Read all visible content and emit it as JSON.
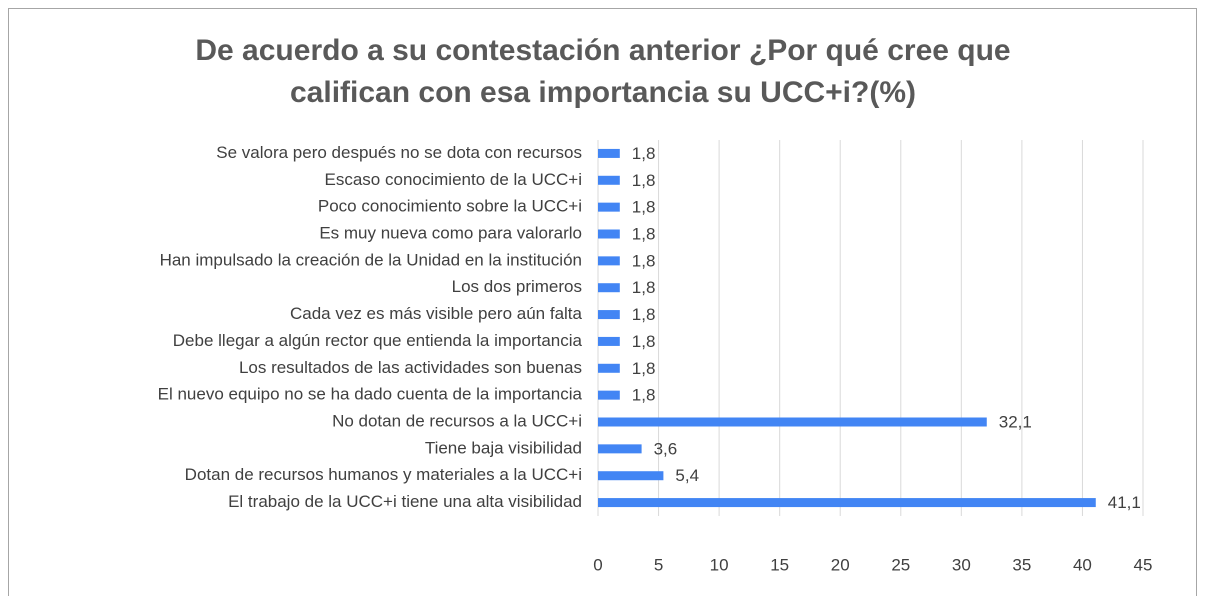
{
  "chart_data": {
    "type": "bar",
    "orientation": "horizontal",
    "title": "De acuerdo a su contestación anterior ¿Por qué cree que califican con esa importancia su UCC+i?(%)",
    "categories": [
      "Se valora pero después no se dota con recursos",
      "Escaso conocimiento de la UCC+i",
      "Poco conocimiento sobre la UCC+i",
      "Es muy nueva como para valorarlo",
      "Han impulsado la creación de la Unidad en la institución",
      "Los dos primeros",
      "Cada vez es más visible pero aún falta",
      "Debe llegar a algún rector que entienda la importancia",
      "Los resultados de las actividades son buenas",
      "El nuevo equipo no se ha dado cuenta de la importancia",
      "No dotan de recursos a la UCC+i",
      "Tiene baja visibilidad",
      "Dotan de recursos humanos y materiales a la UCC+i",
      "El trabajo de la UCC+i tiene una alta visibilidad"
    ],
    "values": [
      1.8,
      1.8,
      1.8,
      1.8,
      1.8,
      1.8,
      1.8,
      1.8,
      1.8,
      1.8,
      32.1,
      3.6,
      5.4,
      41.1
    ],
    "value_labels": [
      "1,8",
      "1,8",
      "1,8",
      "1,8",
      "1,8",
      "1,8",
      "1,8",
      "1,8",
      "1,8",
      "1,8",
      "32,1",
      "3,6",
      "5,4",
      "41,1"
    ],
    "color": "#4285f4",
    "xlim": [
      0,
      45
    ],
    "xticks": [
      0,
      5,
      10,
      15,
      20,
      25,
      30,
      35,
      40,
      45
    ],
    "grid": true
  }
}
